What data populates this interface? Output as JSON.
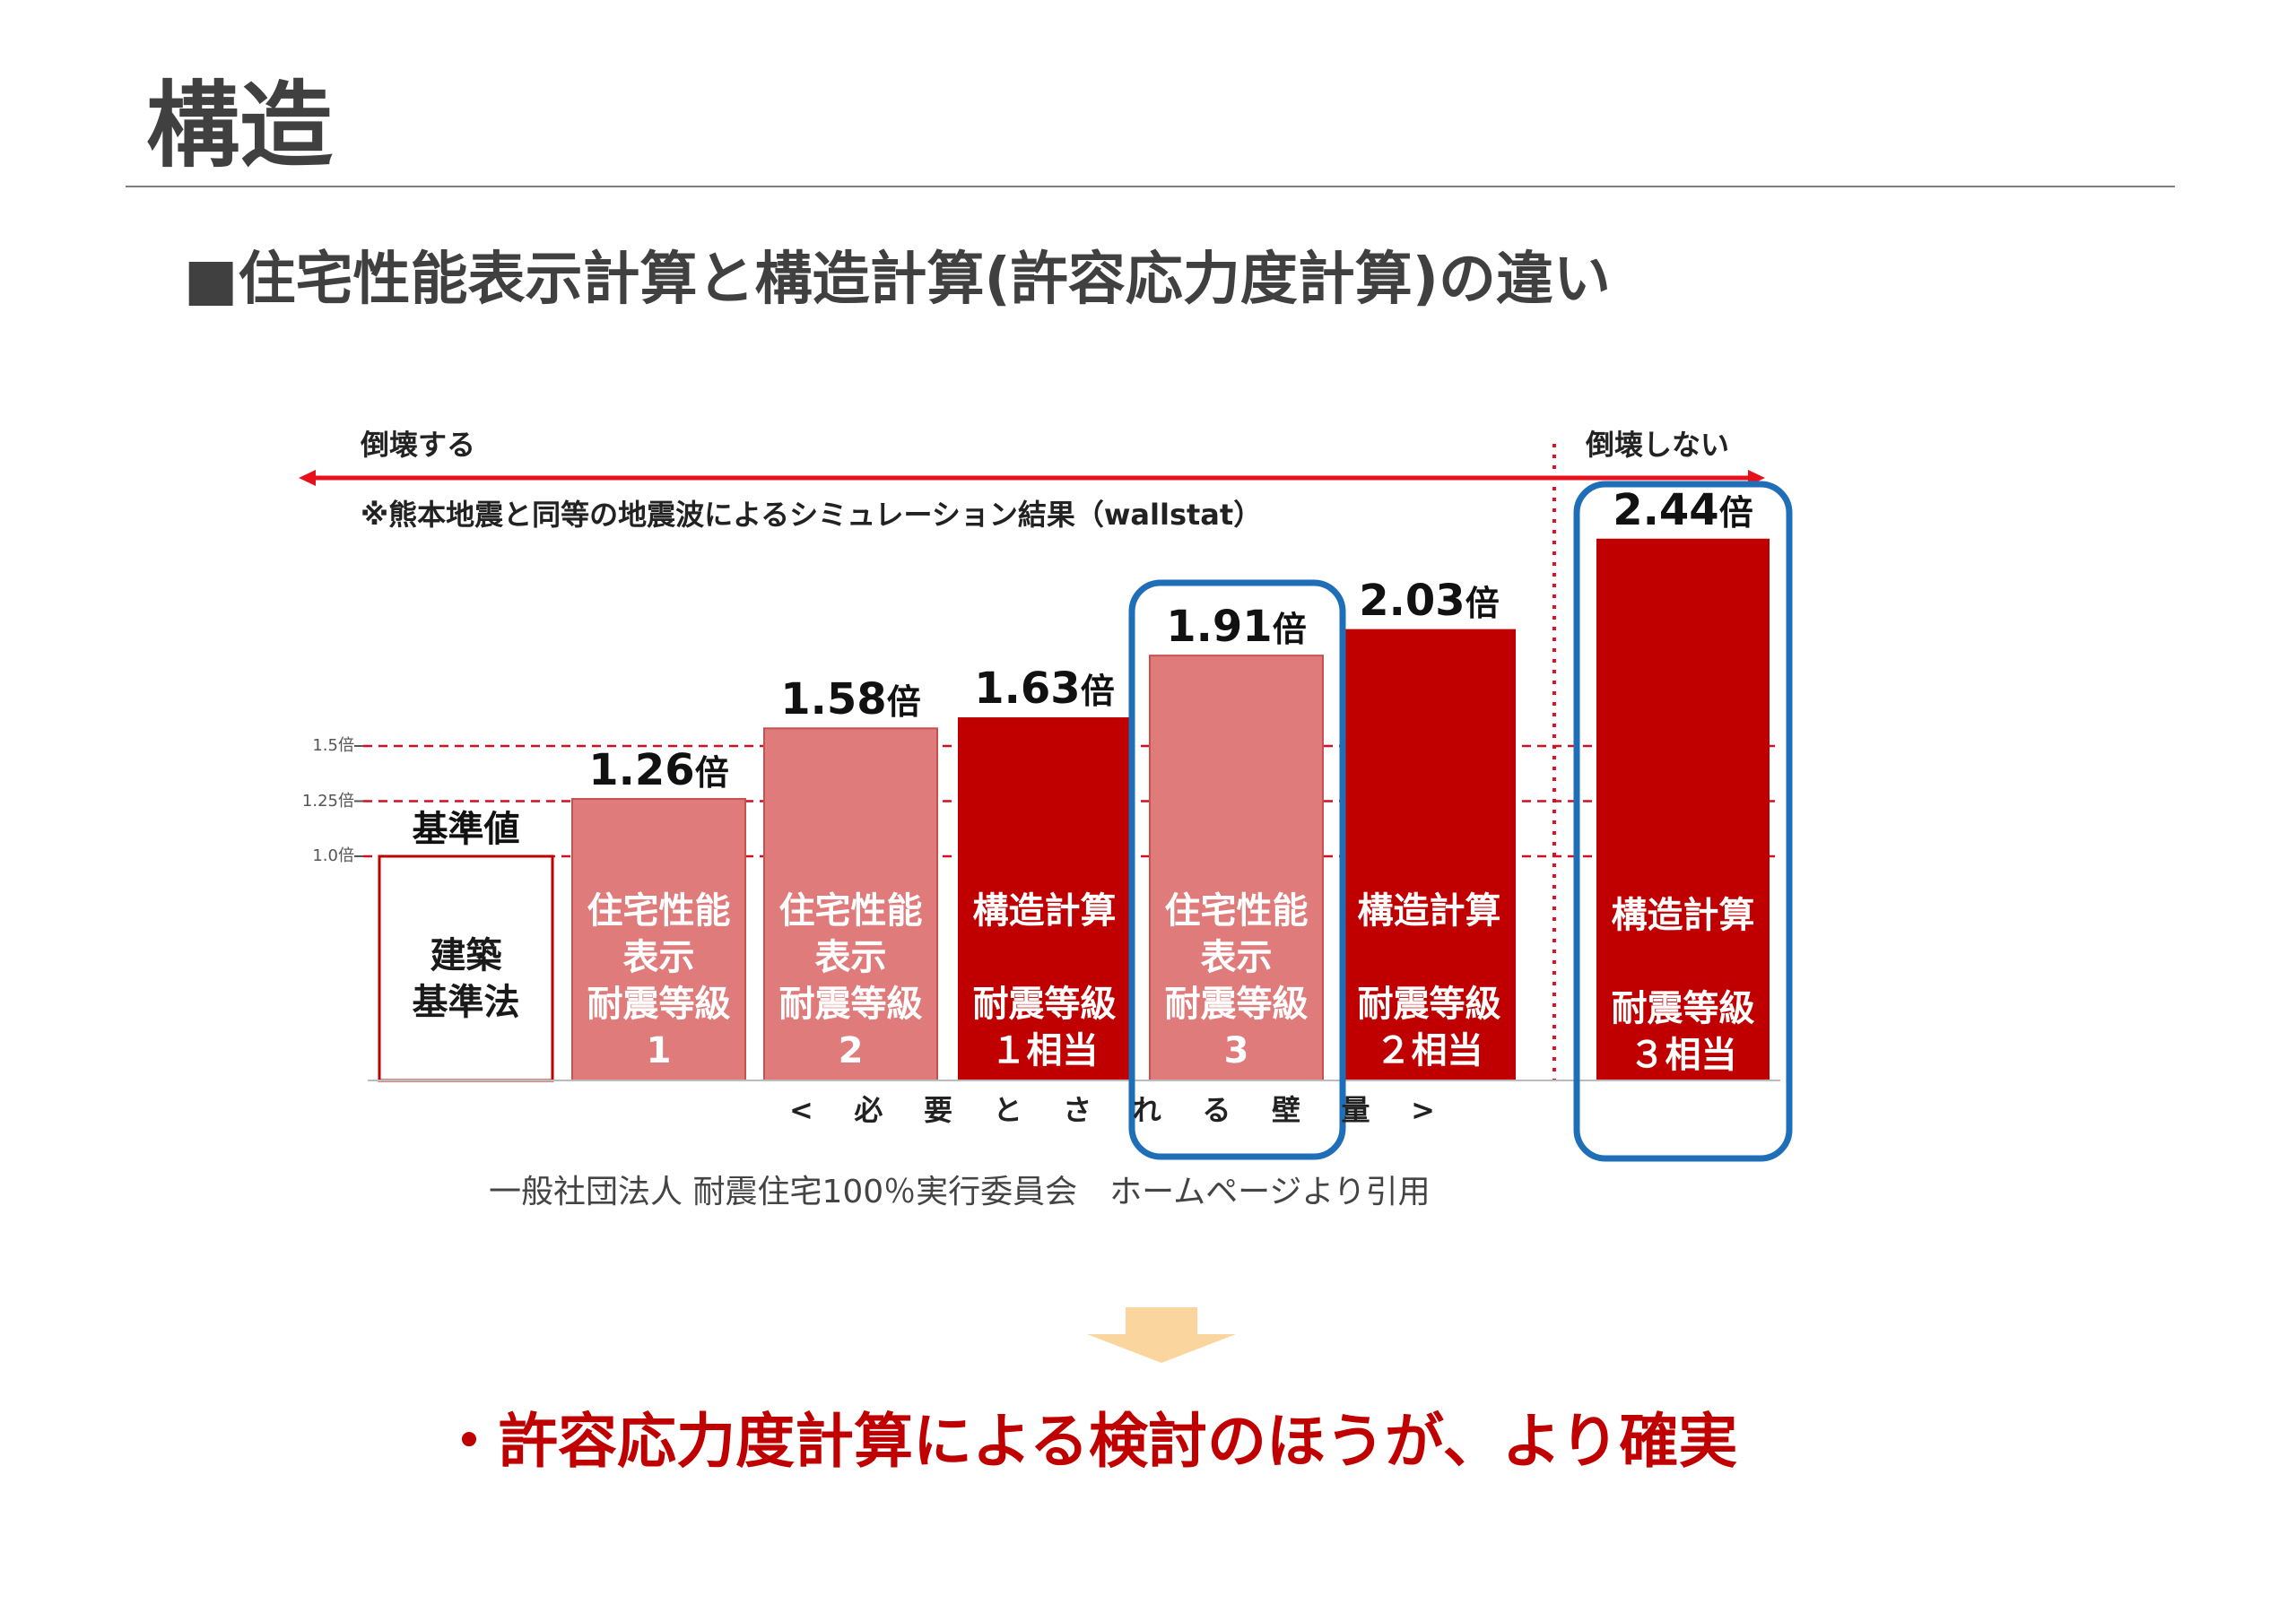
{
  "page": {
    "title": "構造",
    "subtitle": "■住宅性能表示計算と構造計算(許容応力度計算)の違い",
    "citation": "一般社団法人 耐震住宅100％実行委員会　ホームページより引用",
    "conclusion": "・許容応力度計算による検討のほうが、より確実"
  },
  "chart_data": {
    "type": "bar",
    "arrow_left_label": "倒壊する",
    "arrow_right_label": "倒壊しない",
    "note": "※熊本地震と同等の地震波によるシミュレーション結果（wallstat）",
    "xlabel_chars": [
      "<",
      "必",
      "要",
      "と",
      "さ",
      "れ",
      "る",
      "壁",
      "量",
      ">"
    ],
    "unit": "倍",
    "y_ticks": [
      {
        "value": 1.0,
        "label": "1.0倍"
      },
      {
        "value": 1.25,
        "label": "1.25倍"
      },
      {
        "value": 1.5,
        "label": "1.5倍"
      }
    ],
    "bars": [
      {
        "category": "建築\n基準法",
        "value": 1.0,
        "value_label": "基準値",
        "style": "outline"
      },
      {
        "category": "住宅性能\n表示\n耐震等級\n1",
        "value": 1.26,
        "value_label": "1.26",
        "style": "light"
      },
      {
        "category": "住宅性能\n表示\n耐震等級\n2",
        "value": 1.58,
        "value_label": "1.58",
        "style": "light"
      },
      {
        "category": "構造計算\n\n耐震等級\n１相当",
        "value": 1.63,
        "value_label": "1.63",
        "style": "dark"
      },
      {
        "category": "住宅性能\n表示\n耐震等級\n3",
        "value": 1.91,
        "value_label": "1.91",
        "style": "light",
        "highlighted": true
      },
      {
        "category": "構造計算\n\n耐震等級\n２相当",
        "value": 2.03,
        "value_label": "2.03",
        "style": "dark"
      },
      {
        "category": "構造計算\n\n耐震等級\n３相当",
        "value": 2.44,
        "value_label": "2.44",
        "style": "dark",
        "highlighted": true
      }
    ],
    "colors": {
      "dark_bar": "#c00000",
      "light_bar": "#e07b7b",
      "outline_bar": "#c00000",
      "highlight": "#1f6fb8",
      "arrow": "#e8101a",
      "bottom_arrow": "#fbd59e"
    }
  }
}
